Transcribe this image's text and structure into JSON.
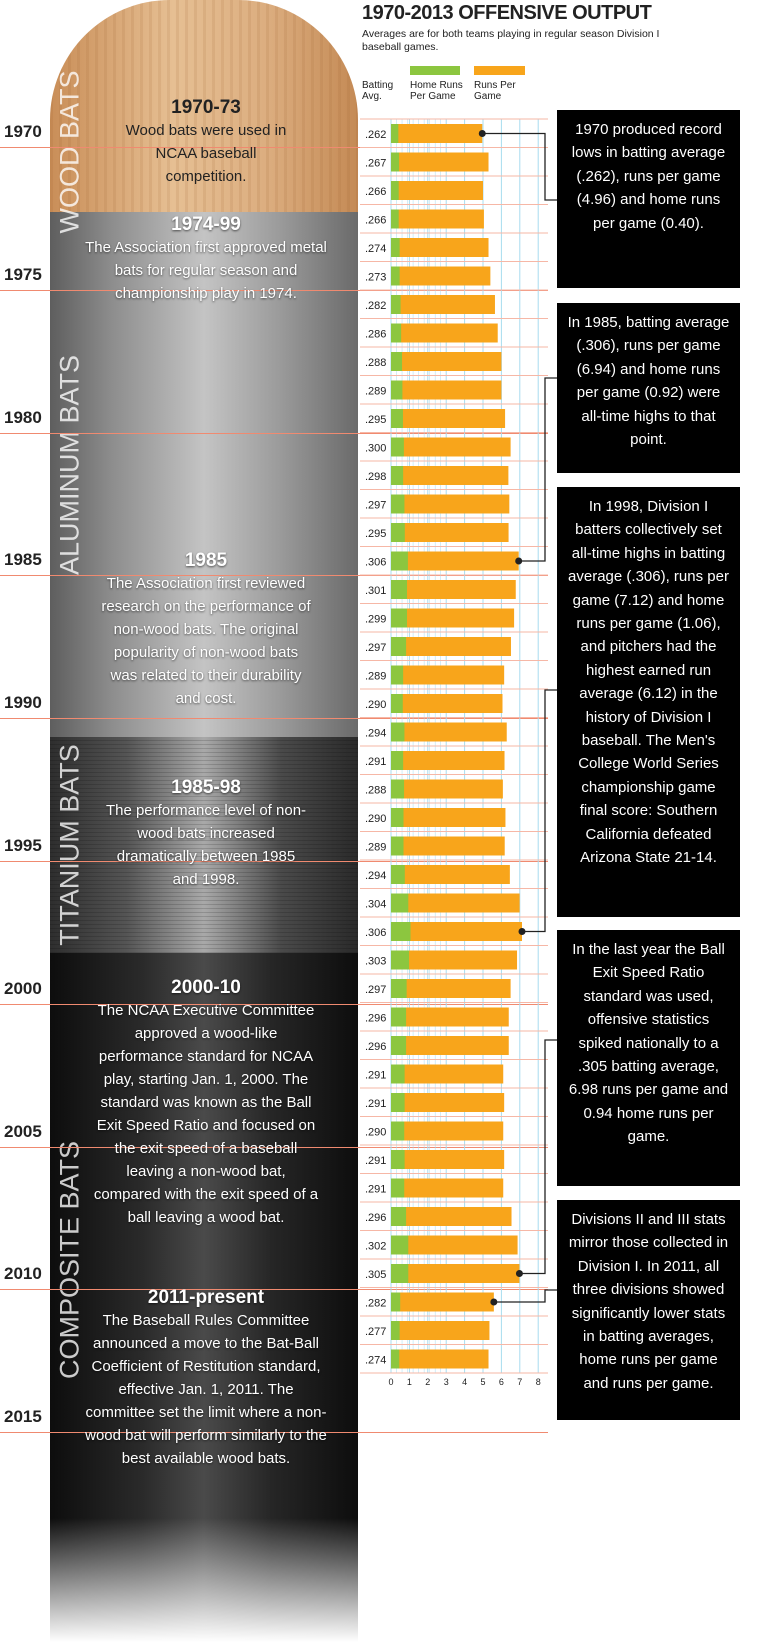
{
  "header": {
    "title": "1970-2013 OFFENSIVE OUTPUT",
    "subtitle": "Averages are for both teams playing in regular season Division I baseball games."
  },
  "legend": {
    "batting_avg": "Batting Avg.",
    "home_runs": "Home Runs Per Game",
    "runs": "Runs Per Game"
  },
  "colors": {
    "home_runs": "#8cc63f",
    "runs": "#f8a51b",
    "grid": "#a8dcef",
    "year_line": "#f08a70"
  },
  "bat": {
    "sections": [
      "WOOD BATS",
      "ALUMINUM BATS",
      "TITANIUM BATS",
      "COMPOSITE BATS"
    ]
  },
  "year_labels": [
    "1970",
    "1975",
    "1980",
    "1985",
    "1990",
    "1995",
    "2000",
    "2005",
    "2010",
    "2015"
  ],
  "eras": [
    {
      "title": "1970-73",
      "text": "Wood bats were used in NCAA baseball competition."
    },
    {
      "title": "1974-99",
      "text": "The Association first approved metal bats for regular season and championship play in 1974."
    },
    {
      "title": "1985",
      "text": "The Association first reviewed research on the performance of non-wood bats. The original popularity of non-wood bats was related to their durability and cost."
    },
    {
      "title": "1985-98",
      "text": "The performance level of non-wood bats increased dramatically between 1985 and 1998."
    },
    {
      "title": "2000-10",
      "text": "The NCAA Executive Committee approved a wood-like performance standard for NCAA play, starting Jan. 1, 2000. The standard was known as the Ball Exit Speed Ratio and focused on the exit speed of a baseball leaving a non-wood bat, compared with the exit speed of a ball leaving a wood bat."
    },
    {
      "title": "2011-present",
      "text": "The Baseball Rules Committee announced a move to the Bat-Ball Coefficient of Restitution standard, effective Jan. 1, 2011. The committee set the limit where a non-wood bat will perform similarly to the best available wood bats."
    }
  ],
  "callouts": [
    "1970 produced record lows in batting average (.262), runs per game (4.96) and home runs per game (0.40).",
    "In 1985, batting average (.306), runs per game (6.94) and home runs per game (0.92) were all-time highs to that point.",
    "In 1998, Division I batters collectively set all-time highs in batting average (.306), runs per game (7.12) and home runs per game (1.06), and pitchers had the highest earned run average (6.12) in the history of Division I baseball. The Men's College World Series championship game final score: Southern California defeated Arizona State 21-14.",
    "In the last year the Ball Exit Speed Ratio standard was used, offensive statistics spiked nationally to a .305 batting average, 6.98 runs per game and 0.94 home runs per game.",
    "Divisions II and III stats mirror those collected in Division I. In 2011, all three divisions showed significantly lower stats in batting averages, home runs per game and runs per game."
  ],
  "chart_data": {
    "type": "bar",
    "orientation": "horizontal",
    "title": "1970-2013 OFFENSIVE OUTPUT",
    "xlim": [
      0,
      8
    ],
    "xticks": [
      "0",
      "1",
      "2",
      "3",
      "4",
      "5",
      "6",
      "7",
      "8"
    ],
    "grid": true,
    "categories": [
      1970,
      1971,
      1972,
      1973,
      1974,
      1975,
      1976,
      1977,
      1978,
      1979,
      1980,
      1981,
      1982,
      1983,
      1984,
      1985,
      1986,
      1987,
      1988,
      1989,
      1990,
      1991,
      1992,
      1993,
      1994,
      1995,
      1996,
      1997,
      1998,
      1999,
      2000,
      2001,
      2002,
      2003,
      2004,
      2005,
      2006,
      2007,
      2008,
      2009,
      2010,
      2011,
      2012,
      2013
    ],
    "batting_avg": [
      ".262",
      ".267",
      ".266",
      ".266",
      ".274",
      ".273",
      ".282",
      ".286",
      ".288",
      ".289",
      ".295",
      ".300",
      ".298",
      ".297",
      ".295",
      ".306",
      ".301",
      ".299",
      ".297",
      ".289",
      ".290",
      ".294",
      ".291",
      ".288",
      ".290",
      ".289",
      ".294",
      ".304",
      ".306",
      ".303",
      ".297",
      ".296",
      ".296",
      ".291",
      ".291",
      ".290",
      ".291",
      ".291",
      ".296",
      ".302",
      ".305",
      ".282",
      ".277",
      ".274"
    ],
    "series": [
      {
        "name": "Home Runs Per Game",
        "values": [
          0.4,
          0.44,
          0.42,
          0.42,
          0.47,
          0.47,
          0.52,
          0.55,
          0.6,
          0.62,
          0.65,
          0.7,
          0.66,
          0.73,
          0.75,
          0.92,
          0.87,
          0.87,
          0.82,
          0.66,
          0.64,
          0.73,
          0.66,
          0.71,
          0.68,
          0.68,
          0.75,
          0.94,
          1.06,
          0.98,
          0.85,
          0.82,
          0.82,
          0.74,
          0.74,
          0.72,
          0.74,
          0.72,
          0.82,
          0.94,
          0.94,
          0.5,
          0.47,
          0.45
        ]
      },
      {
        "name": "Runs Per Game",
        "values": [
          4.96,
          5.3,
          5.0,
          5.05,
          5.3,
          5.4,
          5.65,
          5.8,
          6.0,
          6.0,
          6.2,
          6.5,
          6.38,
          6.43,
          6.39,
          6.94,
          6.78,
          6.69,
          6.52,
          6.15,
          6.06,
          6.29,
          6.17,
          6.08,
          6.22,
          6.18,
          6.46,
          6.99,
          7.12,
          6.85,
          6.5,
          6.4,
          6.4,
          6.1,
          6.15,
          6.1,
          6.15,
          6.1,
          6.55,
          6.88,
          6.98,
          5.59,
          5.35,
          5.3
        ]
      }
    ]
  }
}
